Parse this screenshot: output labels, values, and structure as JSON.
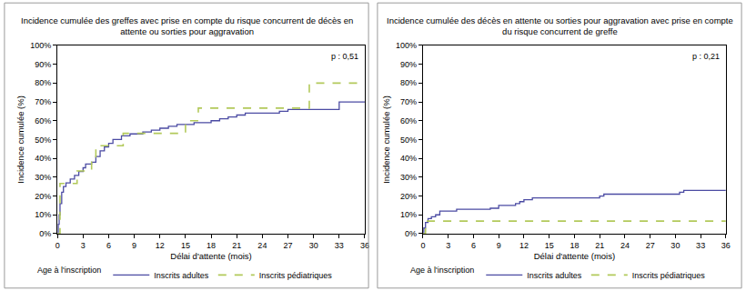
{
  "chart_data": [
    {
      "type": "step",
      "title": "Incidence cumulée des greffes avec prise en compte du risque concurrent de décès en attente ou sorties pour aggravation",
      "x_label": "Délai d'attente (mois)",
      "y_label": "Incidence cumulée (%)",
      "annotations": [
        "p : 0,51"
      ],
      "legend_title": "Age à l'inscription",
      "legend": "bottom",
      "grid": false,
      "xlim": [
        0,
        36
      ],
      "xticks": [
        0,
        3,
        6,
        9,
        12,
        15,
        18,
        21,
        24,
        27,
        30,
        33,
        36
      ],
      "ylim": [
        0,
        100
      ],
      "yticks": [
        {
          "value": 0,
          "label": "0%"
        },
        {
          "value": 10,
          "label": "10%"
        },
        {
          "value": 20,
          "label": "20%"
        },
        {
          "value": 30,
          "label": "30%"
        },
        {
          "value": 40,
          "label": "40%"
        },
        {
          "value": 50,
          "label": "50%"
        },
        {
          "value": 60,
          "label": "60%"
        },
        {
          "value": 70,
          "label": "70%"
        },
        {
          "value": 80,
          "label": "80%"
        },
        {
          "value": 90,
          "label": "90%"
        },
        {
          "value": 100,
          "label": "100%"
        }
      ],
      "series": [
        {
          "name": "Inscrits adultes",
          "color": "#4b4ba3",
          "line_style": "solid",
          "x": [
            0,
            0.1,
            0.2,
            0.3,
            0.5,
            0.7,
            1,
            1.5,
            2,
            2.5,
            3,
            3.3,
            4,
            4.5,
            5,
            5.5,
            6,
            6.5,
            7.5,
            8.5,
            10,
            11,
            12,
            13,
            14,
            16,
            18,
            19,
            20,
            21,
            22,
            26,
            27,
            33,
            36
          ],
          "values": [
            0,
            5,
            10,
            16,
            22,
            25,
            27,
            29,
            31,
            33,
            35,
            37,
            38,
            41,
            44,
            46,
            48,
            50,
            52,
            53,
            54,
            55,
            56,
            57,
            58,
            59,
            60,
            61,
            62,
            63,
            64,
            65,
            66,
            70,
            70
          ]
        },
        {
          "name": "Inscrits pédiatriques",
          "color": "#b2c95a",
          "line_style": "dashed",
          "x": [
            0,
            0.3,
            2.3,
            4,
            4.5,
            7.7,
            15,
            16.5,
            29.5,
            36
          ],
          "values": [
            0,
            26.7,
            33.3,
            40,
            46.7,
            53.3,
            60,
            66.7,
            80,
            80
          ]
        }
      ]
    },
    {
      "type": "step",
      "title": "Incidence cumulée des décès en attente ou sorties pour aggravation avec prise en compte du risque concurrent de greffe",
      "x_label": "Délai d'attente (mois)",
      "y_label": "Incidence cumulée (%)",
      "annotations": [
        "p : 0,21"
      ],
      "legend_title": "Age à l'inscription",
      "legend": "bottom",
      "grid": false,
      "xlim": [
        0,
        36
      ],
      "xticks": [
        0,
        3,
        6,
        9,
        12,
        15,
        18,
        21,
        24,
        27,
        30,
        33,
        36
      ],
      "ylim": [
        0,
        100
      ],
      "yticks": [
        {
          "value": 0,
          "label": "0%"
        },
        {
          "value": 10,
          "label": "10%"
        },
        {
          "value": 20,
          "label": "20%"
        },
        {
          "value": 30,
          "label": "30%"
        },
        {
          "value": 40,
          "label": "40%"
        },
        {
          "value": 50,
          "label": "50%"
        },
        {
          "value": 60,
          "label": "60%"
        },
        {
          "value": 70,
          "label": "70%"
        },
        {
          "value": 80,
          "label": "80%"
        },
        {
          "value": 90,
          "label": "90%"
        },
        {
          "value": 100,
          "label": "100%"
        }
      ],
      "series": [
        {
          "name": "Inscrits adultes",
          "color": "#4b4ba3",
          "line_style": "solid",
          "x": [
            0,
            0.1,
            0.3,
            0.6,
            1,
            1.5,
            2,
            4,
            8,
            9,
            11,
            11.5,
            12,
            13,
            21,
            21.5,
            30.5,
            31,
            36
          ],
          "values": [
            0,
            3,
            6,
            8,
            9,
            10,
            12,
            13,
            13.5,
            15,
            16,
            17,
            18,
            19,
            20,
            21,
            22,
            23,
            23
          ]
        },
        {
          "name": "Inscrits pédiatriques",
          "color": "#b2c95a",
          "line_style": "dashed",
          "x": [
            0,
            0.3,
            36
          ],
          "values": [
            0,
            6.7,
            6.7
          ]
        }
      ]
    }
  ]
}
